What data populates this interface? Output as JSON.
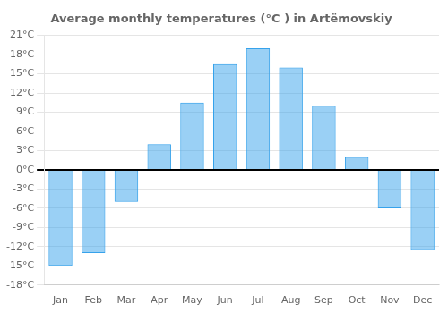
{
  "chart_data": {
    "type": "bar",
    "title": "Average monthly temperatures (°C ) in Artëmovskiy",
    "categories": [
      "Jan",
      "Feb",
      "Mar",
      "Apr",
      "May",
      "Jun",
      "Jul",
      "Aug",
      "Sep",
      "Oct",
      "Nov",
      "Dec"
    ],
    "values": [
      -15,
      -13,
      -5,
      4,
      10.5,
      16.5,
      19,
      16,
      10,
      2,
      -6,
      -12.5
    ],
    "ylim": [
      -18,
      21
    ],
    "yticks": [
      {
        "value": -18,
        "label": "-18°C"
      },
      {
        "value": -15,
        "label": "-15°C"
      },
      {
        "value": -12,
        "label": "-12°C"
      },
      {
        "value": -9,
        "label": "-9°C"
      },
      {
        "value": -6,
        "label": "-6°C"
      },
      {
        "value": -3,
        "label": "-3°C"
      },
      {
        "value": 0,
        "label": "0°C"
      },
      {
        "value": 3,
        "label": "3°C"
      },
      {
        "value": 6,
        "label": "6°C"
      },
      {
        "value": 9,
        "label": "9°C"
      },
      {
        "value": 12,
        "label": "12°C"
      },
      {
        "value": 15,
        "label": "15°C"
      },
      {
        "value": 18,
        "label": "18°C"
      },
      {
        "value": 21,
        "label": "21°C"
      }
    ],
    "grid": true
  }
}
